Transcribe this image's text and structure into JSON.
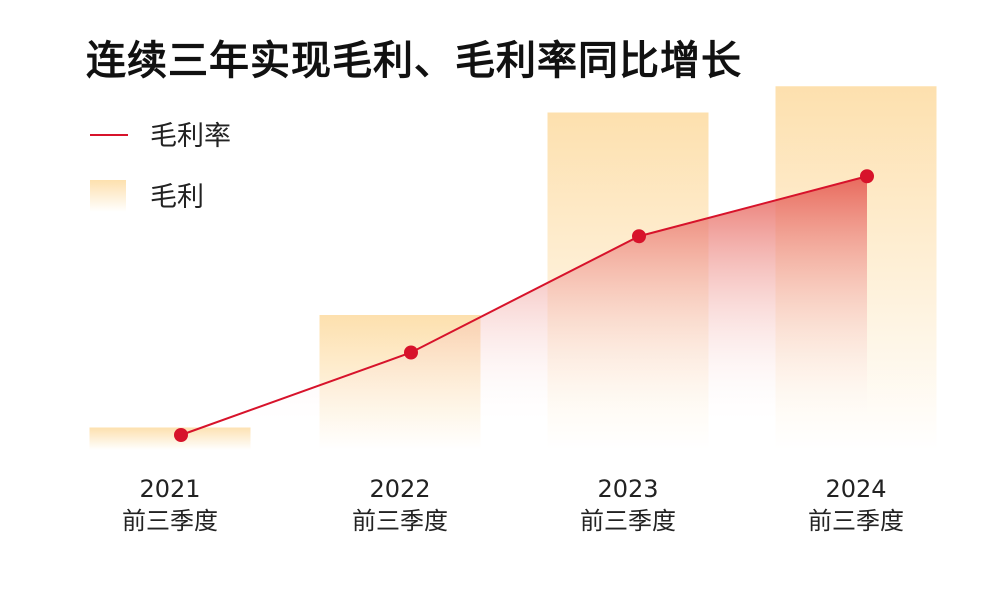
{
  "chart_data": {
    "type": "bar",
    "title": "连续三年实现毛利、毛利率同比增长",
    "categories": [
      [
        "2021",
        "前三季度"
      ],
      [
        "2022",
        "前三季度"
      ],
      [
        "2023",
        "前三季度"
      ],
      [
        "2024",
        "前三季度"
      ]
    ],
    "series": [
      {
        "name": "毛利",
        "type": "bar",
        "values": [
          6,
          36,
          90,
          97
        ]
      },
      {
        "name": "毛利率",
        "type": "line",
        "values": [
          4,
          26,
          57,
          73
        ]
      }
    ],
    "ylim": [
      0,
      100
    ],
    "xlabel": "",
    "ylabel": "",
    "grid": false,
    "legend": "top-left",
    "colors": {
      "line": "#d7132b",
      "bar_top": "#fde0ae",
      "bar_bottom": "#ffffff",
      "area_top": "#e5584f",
      "area_bottom": "#ffffff"
    }
  }
}
